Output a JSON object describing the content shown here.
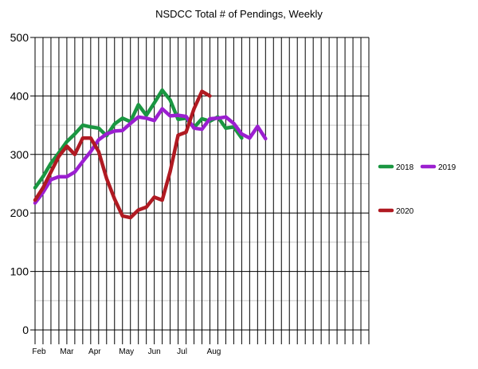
{
  "chart_data": {
    "type": "line",
    "title": "NSDCC Total # of Pendings, Weekly",
    "xlabel": "",
    "ylabel": "",
    "ylim": [
      0,
      500
    ],
    "y_ticks": [
      0,
      100,
      200,
      300,
      400,
      500
    ],
    "x_week_count": 42,
    "x_month_labels": [
      {
        "label": "Feb",
        "week": 0.5
      },
      {
        "label": "Mar",
        "week": 4
      },
      {
        "label": "Apr",
        "week": 7.5
      },
      {
        "label": "May",
        "week": 11.5
      },
      {
        "label": "Jun",
        "week": 15
      },
      {
        "label": "Jul",
        "week": 18.5
      },
      {
        "label": "Aug",
        "week": 22.5
      }
    ],
    "grid": true,
    "legend_position": "right",
    "series": [
      {
        "name": "2018",
        "color": "#1a9641",
        "values": [
          243,
          262,
          285,
          303,
          322,
          335,
          350,
          347,
          345,
          332,
          352,
          362,
          356,
          385,
          367,
          388,
          410,
          393,
          360,
          362,
          346,
          361,
          357,
          364,
          345,
          347,
          328
        ]
      },
      {
        "name": "2019",
        "color": "#9b1fd0",
        "values": [
          217,
          235,
          257,
          262,
          262,
          270,
          288,
          305,
          325,
          335,
          340,
          341,
          353,
          364,
          362,
          358,
          378,
          366,
          367,
          365,
          345,
          343,
          361,
          362,
          364,
          353,
          335,
          328,
          348,
          327
        ]
      },
      {
        "name": "2020",
        "color": "#b01a22",
        "values": [
          222,
          243,
          270,
          297,
          314,
          300,
          328,
          328,
          305,
          259,
          224,
          195,
          192,
          205,
          210,
          227,
          222,
          271,
          333,
          338,
          378,
          408,
          400
        ]
      }
    ]
  }
}
